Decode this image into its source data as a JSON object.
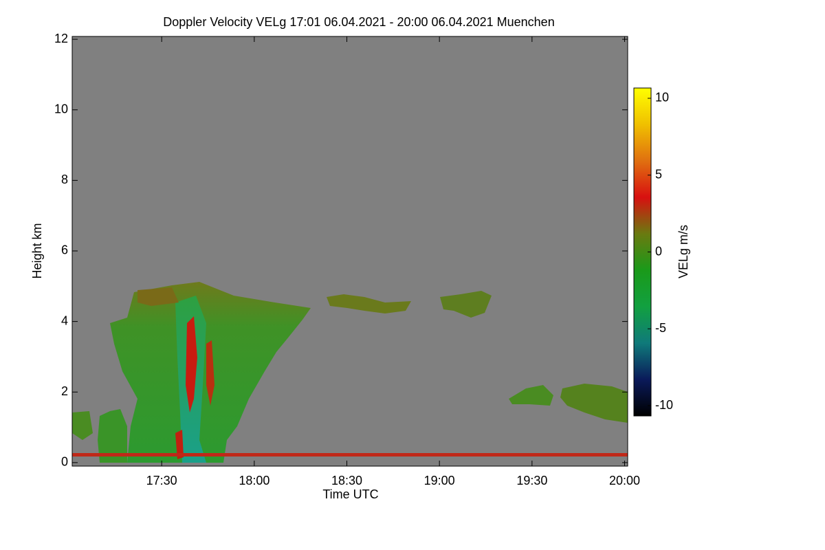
{
  "chart_data": {
    "type": "heatmap",
    "title": "Doppler Velocity VELg   17:01 06.04.2021 - 20:00 06.04.2021 Muenchen",
    "xlabel": "Time UTC",
    "ylabel": "Height km",
    "xlim": [
      1021,
      1201
    ],
    "xticks": [
      {
        "value": 1050,
        "label": "17:30"
      },
      {
        "value": 1080,
        "label": "18:00"
      },
      {
        "value": 1110,
        "label": "18:30"
      },
      {
        "value": 1140,
        "label": "19:00"
      },
      {
        "value": 1170,
        "label": "19:30"
      },
      {
        "value": 1200,
        "label": "20:00"
      }
    ],
    "ylim": [
      -0.1,
      12.08
    ],
    "yticks": [
      0,
      2,
      4,
      6,
      8,
      10,
      12
    ],
    "background": "#808080",
    "colorbar": {
      "label": "VELg m/s",
      "lim": [
        -10.67,
        10.67
      ],
      "ticks": [
        -10,
        -5,
        0,
        5,
        10
      ],
      "colors": [
        "#000000",
        "#0a1a5a",
        "#0f7a7a",
        "#12a040",
        "#1a9a1a",
        "#6a7a10",
        "#d81010",
        "#e07010",
        "#f0c000",
        "#ffff00"
      ]
    }
  }
}
